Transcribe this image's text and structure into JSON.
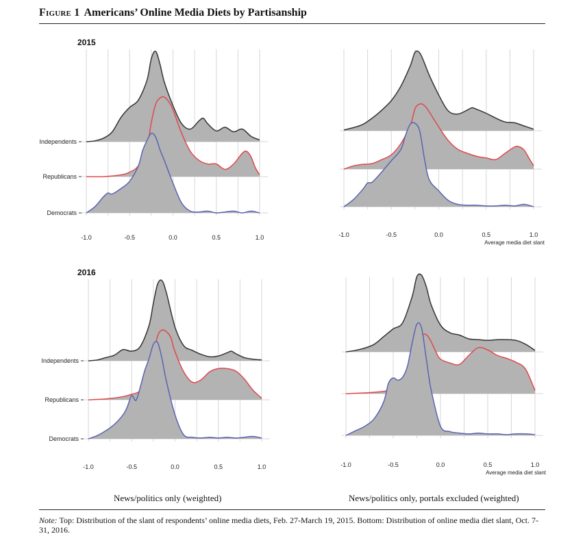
{
  "figure": {
    "label": "Figure 1",
    "title": "Americans’ Online Media Diets by Partisanship"
  },
  "captions": {
    "left": "News/politics only (weighted)",
    "right": "News/politics only, portals excluded (weighted)"
  },
  "note": {
    "prefix": "Note:",
    "text": " Top: Distribution of the slant of respondents’ online media diets, Feb. 27-March 19, 2015. Bottom: Distribution of online media diet slant, Oct. 7-31, 2016."
  },
  "colors": {
    "independents": "#333333",
    "republicans": "#e0474c",
    "democrats": "#5a63b0",
    "fill": "#b3b3b3",
    "grid": "#d6d6d6"
  },
  "chart_data": [
    {
      "type": "area",
      "year_label": "2015",
      "panel": "top-left",
      "xlabel": "",
      "xlim": [
        -1.0,
        1.0
      ],
      "xticks": [
        "-1.0",
        "-0.5",
        "0.0",
        "0.5",
        "1.0"
      ],
      "ridges": [
        "Independents",
        "Republicans",
        "Democrats"
      ],
      "series": [
        {
          "name": "Independents",
          "x": [
            -1.0,
            -0.9,
            -0.8,
            -0.7,
            -0.6,
            -0.5,
            -0.4,
            -0.3,
            -0.25,
            -0.2,
            -0.15,
            -0.1,
            0.0,
            0.1,
            0.2,
            0.3,
            0.35,
            0.4,
            0.5,
            0.6,
            0.7,
            0.8,
            0.9,
            1.0
          ],
          "y": [
            0.0,
            0.01,
            0.04,
            0.11,
            0.27,
            0.38,
            0.46,
            0.68,
            0.92,
            1.0,
            0.86,
            0.66,
            0.4,
            0.2,
            0.14,
            0.23,
            0.26,
            0.2,
            0.12,
            0.16,
            0.11,
            0.14,
            0.06,
            0.02
          ]
        },
        {
          "name": "Republicans",
          "x": [
            -1.0,
            -0.8,
            -0.6,
            -0.5,
            -0.4,
            -0.3,
            -0.25,
            -0.2,
            -0.15,
            -0.1,
            -0.05,
            0.0,
            0.1,
            0.2,
            0.3,
            0.4,
            0.5,
            0.6,
            0.7,
            0.8,
            0.85,
            0.9,
            0.95,
            1.0
          ],
          "y": [
            0.0,
            0.0,
            0.02,
            0.05,
            0.12,
            0.33,
            0.6,
            0.8,
            0.87,
            0.88,
            0.83,
            0.74,
            0.48,
            0.28,
            0.18,
            0.14,
            0.14,
            0.08,
            0.14,
            0.26,
            0.28,
            0.22,
            0.1,
            0.02
          ]
        },
        {
          "name": "Democrats",
          "x": [
            -1.0,
            -0.9,
            -0.8,
            -0.75,
            -0.7,
            -0.6,
            -0.5,
            -0.4,
            -0.35,
            -0.3,
            -0.25,
            -0.2,
            -0.15,
            -0.1,
            0.0,
            0.1,
            0.2,
            0.3,
            0.4,
            0.5,
            0.6,
            0.7,
            0.8,
            0.9,
            1.0
          ],
          "y": [
            0.0,
            0.07,
            0.18,
            0.22,
            0.21,
            0.27,
            0.35,
            0.52,
            0.69,
            0.8,
            0.88,
            0.84,
            0.7,
            0.58,
            0.33,
            0.11,
            0.02,
            0.01,
            0.02,
            0.0,
            0.01,
            0.02,
            0.0,
            0.02,
            0.0
          ]
        }
      ]
    },
    {
      "type": "area",
      "panel": "top-right",
      "xlabel": "Average media diet slant",
      "xlim": [
        -1.0,
        1.0
      ],
      "xticks": [
        "-1.0",
        "-0.5",
        "0.0",
        "0.5",
        "1.0"
      ],
      "ridges": [
        "Independents",
        "Republicans",
        "Democrats"
      ],
      "series": [
        {
          "name": "Independents",
          "x": [
            -1.0,
            -0.9,
            -0.8,
            -0.7,
            -0.6,
            -0.5,
            -0.4,
            -0.3,
            -0.25,
            -0.2,
            -0.15,
            -0.1,
            0.0,
            0.1,
            0.2,
            0.3,
            0.35,
            0.4,
            0.5,
            0.6,
            0.7,
            0.8,
            0.9,
            1.0
          ],
          "y": [
            0.01,
            0.04,
            0.08,
            0.16,
            0.26,
            0.38,
            0.56,
            0.82,
            0.99,
            0.98,
            0.85,
            0.7,
            0.45,
            0.25,
            0.21,
            0.26,
            0.29,
            0.27,
            0.22,
            0.16,
            0.11,
            0.1,
            0.06,
            0.02
          ]
        },
        {
          "name": "Republicans",
          "x": [
            -1.0,
            -0.9,
            -0.8,
            -0.7,
            -0.6,
            -0.5,
            -0.4,
            -0.3,
            -0.25,
            -0.2,
            -0.15,
            -0.1,
            0.0,
            0.1,
            0.2,
            0.3,
            0.4,
            0.5,
            0.6,
            0.7,
            0.8,
            0.85,
            0.9,
            0.95,
            1.0
          ],
          "y": [
            0.0,
            0.04,
            0.06,
            0.07,
            0.12,
            0.18,
            0.32,
            0.55,
            0.76,
            0.82,
            0.8,
            0.72,
            0.53,
            0.36,
            0.25,
            0.2,
            0.16,
            0.14,
            0.12,
            0.2,
            0.28,
            0.28,
            0.24,
            0.14,
            0.04
          ]
        },
        {
          "name": "Democrats",
          "x": [
            -1.0,
            -0.9,
            -0.8,
            -0.75,
            -0.7,
            -0.6,
            -0.5,
            -0.4,
            -0.35,
            -0.3,
            -0.25,
            -0.2,
            -0.15,
            -0.1,
            0.0,
            0.1,
            0.2,
            0.3,
            0.4,
            0.5,
            0.6,
            0.7,
            0.8,
            0.9,
            1.0
          ],
          "y": [
            0.0,
            0.09,
            0.22,
            0.3,
            0.31,
            0.44,
            0.58,
            0.72,
            0.9,
            1.04,
            1.05,
            0.95,
            0.6,
            0.34,
            0.2,
            0.08,
            0.03,
            0.02,
            0.02,
            0.01,
            0.01,
            0.02,
            0.01,
            0.03,
            0.0
          ]
        }
      ]
    },
    {
      "type": "area",
      "year_label": "2016",
      "panel": "bottom-left",
      "xlabel": "",
      "xlim": [
        -1.0,
        1.0
      ],
      "xticks": [
        "-1.0",
        "-0.5",
        "0.0",
        "0.5",
        "1.0"
      ],
      "ridges": [
        "Independents",
        "Republicans",
        "Democrats"
      ],
      "series": [
        {
          "name": "Independents",
          "x": [
            -1.0,
            -0.9,
            -0.8,
            -0.7,
            -0.6,
            -0.5,
            -0.4,
            -0.3,
            -0.25,
            -0.2,
            -0.15,
            -0.1,
            0.0,
            0.1,
            0.2,
            0.3,
            0.4,
            0.5,
            0.6,
            0.65,
            0.7,
            0.8,
            0.9,
            1.0
          ],
          "y": [
            0.0,
            0.01,
            0.04,
            0.07,
            0.14,
            0.12,
            0.18,
            0.44,
            0.72,
            0.96,
            1.0,
            0.85,
            0.42,
            0.19,
            0.13,
            0.08,
            0.05,
            0.06,
            0.1,
            0.12,
            0.09,
            0.04,
            0.02,
            0.01
          ]
        },
        {
          "name": "Republicans",
          "x": [
            -1.0,
            -0.8,
            -0.6,
            -0.5,
            -0.4,
            -0.3,
            -0.25,
            -0.2,
            -0.15,
            -0.1,
            -0.05,
            0.0,
            0.1,
            0.2,
            0.3,
            0.4,
            0.5,
            0.6,
            0.7,
            0.8,
            0.9,
            1.0
          ],
          "y": [
            0.0,
            0.01,
            0.04,
            0.07,
            0.12,
            0.35,
            0.56,
            0.8,
            0.87,
            0.85,
            0.78,
            0.6,
            0.35,
            0.22,
            0.25,
            0.35,
            0.39,
            0.39,
            0.36,
            0.26,
            0.12,
            0.02
          ]
        },
        {
          "name": "Democrats",
          "x": [
            -1.0,
            -0.9,
            -0.8,
            -0.7,
            -0.6,
            -0.55,
            -0.5,
            -0.45,
            -0.4,
            -0.35,
            -0.3,
            -0.25,
            -0.2,
            -0.15,
            -0.1,
            0.0,
            0.1,
            0.2,
            0.3,
            0.4,
            0.5,
            0.6,
            0.7,
            0.8,
            0.9,
            1.0
          ],
          "y": [
            0.0,
            0.04,
            0.1,
            0.18,
            0.3,
            0.4,
            0.54,
            0.48,
            0.65,
            0.85,
            1.0,
            1.18,
            1.2,
            1.0,
            0.72,
            0.3,
            0.05,
            0.02,
            0.01,
            0.02,
            0.01,
            0.02,
            0.01,
            0.02,
            0.03,
            0.01
          ]
        }
      ]
    },
    {
      "type": "area",
      "panel": "bottom-right",
      "xlabel": "Average media diet slant",
      "xlim": [
        -1.0,
        1.0
      ],
      "xticks": [
        "-1.0",
        "-0.5",
        "0.0",
        "0.5",
        "1.0"
      ],
      "ridges": [
        "Independents",
        "Republicans",
        "Democrats"
      ],
      "series": [
        {
          "name": "Independents",
          "x": [
            -1.0,
            -0.9,
            -0.8,
            -0.7,
            -0.6,
            -0.5,
            -0.4,
            -0.3,
            -0.25,
            -0.2,
            -0.15,
            -0.1,
            0.0,
            0.1,
            0.2,
            0.3,
            0.4,
            0.5,
            0.6,
            0.7,
            0.8,
            0.9,
            1.0
          ],
          "y": [
            0.0,
            0.02,
            0.05,
            0.1,
            0.2,
            0.3,
            0.38,
            0.72,
            0.98,
            1.0,
            0.85,
            0.62,
            0.35,
            0.25,
            0.22,
            0.17,
            0.16,
            0.15,
            0.16,
            0.16,
            0.15,
            0.1,
            0.02
          ]
        },
        {
          "name": "Republicans",
          "x": [
            -1.0,
            -0.8,
            -0.6,
            -0.5,
            -0.4,
            -0.3,
            -0.25,
            -0.2,
            -0.15,
            -0.1,
            -0.05,
            0.0,
            0.1,
            0.2,
            0.3,
            0.4,
            0.5,
            0.6,
            0.7,
            0.8,
            0.9,
            1.0
          ],
          "y": [
            0.0,
            0.01,
            0.03,
            0.06,
            0.1,
            0.3,
            0.58,
            0.75,
            0.77,
            0.68,
            0.55,
            0.45,
            0.4,
            0.38,
            0.5,
            0.6,
            0.57,
            0.5,
            0.46,
            0.41,
            0.32,
            0.04
          ]
        },
        {
          "name": "Democrats",
          "x": [
            -1.0,
            -0.9,
            -0.8,
            -0.7,
            -0.6,
            -0.55,
            -0.5,
            -0.45,
            -0.4,
            -0.35,
            -0.3,
            -0.25,
            -0.2,
            -0.15,
            -0.1,
            0.0,
            0.1,
            0.2,
            0.3,
            0.4,
            0.5,
            0.6,
            0.7,
            0.8,
            0.9,
            1.0
          ],
          "y": [
            0.0,
            0.06,
            0.12,
            0.22,
            0.44,
            0.68,
            0.75,
            0.72,
            0.76,
            0.9,
            1.2,
            1.45,
            1.4,
            1.0,
            0.6,
            0.12,
            0.05,
            0.03,
            0.02,
            0.03,
            0.02,
            0.02,
            0.01,
            0.02,
            0.02,
            0.01
          ]
        }
      ]
    }
  ]
}
